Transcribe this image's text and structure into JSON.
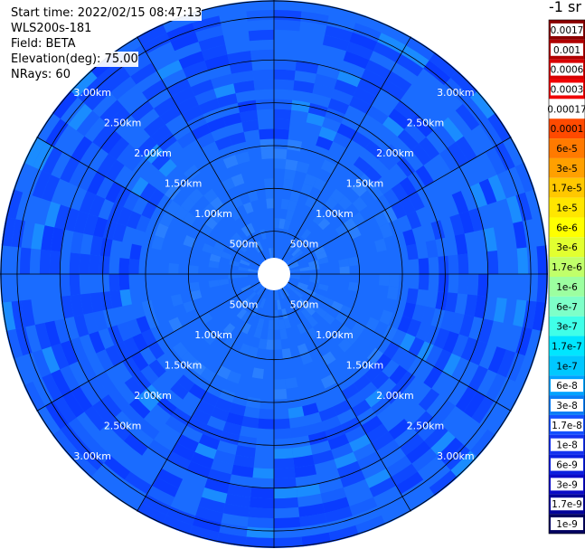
{
  "info": {
    "start_time": "Start time: 2022/02/15 08:47:13",
    "station": "WLS200s-181",
    "field": "Field: BETA",
    "elevation": "Elevation(deg): 75.00",
    "nrays": "NRays: 60"
  },
  "colorbar": {
    "unit": "-1 sr",
    "labels": [
      "0.0017",
      "0.001",
      "0.0006",
      "0.0003",
      "0.00017",
      "0.0001",
      "6e-5",
      "3e-5",
      "1.7e-5",
      "1e-5",
      "6e-6",
      "3e-6",
      "1.7e-6",
      "1e-6",
      "6e-7",
      "3e-7",
      "1.7e-7",
      "1e-7",
      "6e-8",
      "3e-8",
      "1.7e-8",
      "1e-8",
      "6e-9",
      "3e-9",
      "1.7e-9",
      "1e-9"
    ],
    "colors": [
      "#8b0000",
      "#b00000",
      "#d80000",
      "#f00000",
      "#ffffff",
      "#ff4a00",
      "#ff7a00",
      "#ffa000",
      "#ffc800",
      "#ffe600",
      "#ffff00",
      "#e2ff30",
      "#c0ff6a",
      "#9cffa0",
      "#7effc8",
      "#40ffe8",
      "#00e6ff",
      "#00c8ff",
      "#00a2ff",
      "#0a7ef6",
      "#1450ff",
      "#1432f0",
      "#0a1ee0",
      "#0a0ac8",
      "#00009a",
      "#000060"
    ],
    "label_dark": [
      "0.0017",
      "0.001",
      "0.0006",
      "0.0003",
      "0.00017",
      "0.0001",
      "6e-5",
      "3e-5",
      "1.7e-5",
      "1e-5",
      "6e-6",
      "3e-6",
      "1.7e-6",
      "1e-6",
      "6e-7",
      "3e-7",
      "1.7e-7",
      "1e-7",
      "6e-8"
    ]
  },
  "chart_data": {
    "type": "heatmap",
    "projection": "polar (PPI)",
    "field": "BETA",
    "unit": "sr-1",
    "elevation_deg": 75.0,
    "n_rays": 60,
    "range_ring_labels": [
      "500m",
      "1.00km",
      "1.50km",
      "2.00km",
      "2.50km",
      "3.00km"
    ],
    "range_rings_km": [
      0.5,
      1.0,
      1.5,
      2.0,
      2.5,
      3.0
    ],
    "max_range_km": 3.2,
    "spoke_angles_deg": [
      0,
      30,
      60,
      90,
      120,
      150,
      180,
      210,
      240,
      270,
      300,
      330
    ],
    "typical_value_range": [
      "1e-8",
      "6e-8"
    ],
    "colors": {
      "background": "#1a6cff",
      "bin_variants": [
        "#1a6cff",
        "#1f74ff",
        "#1660ff",
        "#0e48ff",
        "#1052f4",
        "#2a7fff",
        "#0a3cff",
        "#1a8cff"
      ],
      "grid": "#000000",
      "ring_label": "#ffffff"
    }
  }
}
